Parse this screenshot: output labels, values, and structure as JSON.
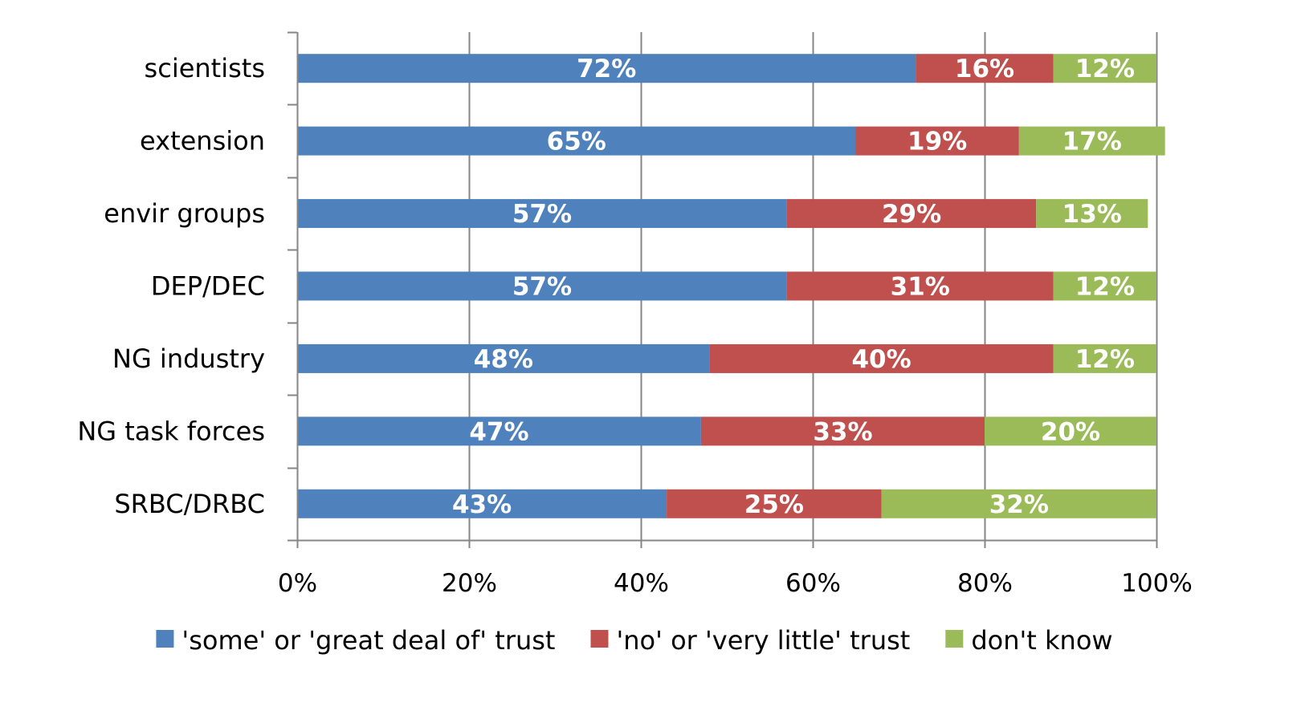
{
  "chart_data": {
    "type": "bar",
    "orientation": "horizontal",
    "stacked": "percent",
    "title": "",
    "xlabel": "",
    "ylabel": "",
    "xlim": [
      0,
      100
    ],
    "x_ticks": [
      0,
      20,
      40,
      60,
      80,
      100
    ],
    "x_tick_labels": [
      "0%",
      "20%",
      "40%",
      "60%",
      "80%",
      "100%"
    ],
    "grid": "vertical",
    "legend_position": "bottom",
    "categories": [
      "scientists",
      "extension",
      "envir groups",
      "DEP/DEC",
      "NG industry",
      "NG task forces",
      "SRBC/DRBC"
    ],
    "series": [
      {
        "name": "'some' or 'great deal of' trust",
        "color": "#4F81BD",
        "values": [
          72,
          65,
          57,
          57,
          48,
          47,
          43
        ],
        "labels": [
          "72%",
          "65%",
          "57%",
          "57%",
          "48%",
          "47%",
          "43%"
        ]
      },
      {
        "name": "'no' or 'very little' trust",
        "color": "#C0504D",
        "values": [
          16,
          19,
          29,
          31,
          40,
          33,
          25
        ],
        "labels": [
          "16%",
          "19%",
          "29%",
          "31%",
          "40%",
          "33%",
          "25%"
        ]
      },
      {
        "name": "don't know",
        "color": "#9BBB59",
        "values": [
          12,
          17,
          13,
          12,
          12,
          20,
          32
        ],
        "labels": [
          "12%",
          "17%",
          "13%",
          "12%",
          "12%",
          "20%",
          "32%"
        ]
      }
    ]
  },
  "colors": {
    "axis": "#868686",
    "gridline": "#868686",
    "background": "#FFFFFF"
  }
}
